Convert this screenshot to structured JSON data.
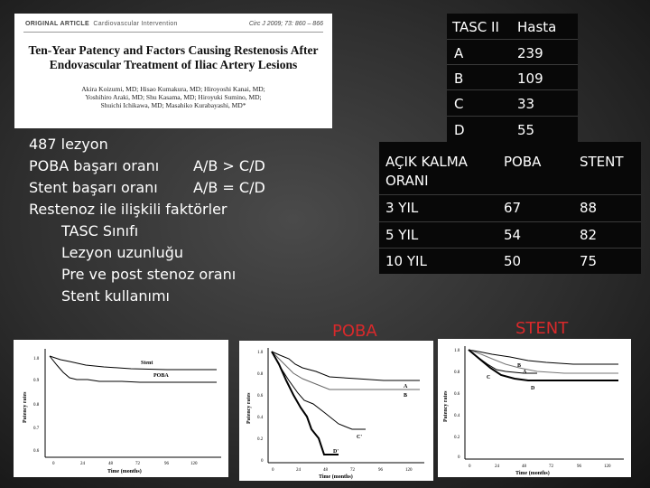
{
  "article": {
    "section": "ORIGINAL ARTICLE",
    "category": "Cardiovascular Intervention",
    "citation": "Circ J 2009; 73: 860 – 866",
    "title_line1": "Ten-Year Patency and Factors Causing Restenosis After",
    "title_line2": "Endovascular Treatment of Iliac Artery Lesions",
    "authors_line1": "Akira Koizumi, MD; Hisao Kumakura, MD; Hiroyoshi Kanai, MD;",
    "authors_line2": "Yoshihiro Araki, MD; Shu Kasama, MD; Hiroyuki Sumino, MD;",
    "authors_line3": "Shuichi Ichikawa, MD; Masahiko Kurabayashi, MD*"
  },
  "bullets": {
    "line1": "487 lezyon",
    "line2_a": "POBA başarı oranı",
    "line2_b": "A/B > C/D",
    "line3_a": "Stent başarı oranı",
    "line3_b": "A/B = C/D",
    "line4": "Restenoz ile ilişkili faktörler",
    "line5": "TASC Sınıfı",
    "line6": "Lezyon uzunluğu",
    "line7": "Pre ve post stenoz oranı",
    "line8": "Stent kullanımı"
  },
  "tasc_table": {
    "headers": [
      "TASC II",
      "Hasta"
    ],
    "rows": [
      [
        "A",
        "239"
      ],
      [
        "B",
        "109"
      ],
      [
        "C",
        "33"
      ],
      [
        "D",
        "55"
      ]
    ]
  },
  "kalma_table": {
    "headers": [
      "AÇIK KALMA ORANI",
      "POBA",
      "STENT"
    ],
    "rows": [
      [
        "3 YIL",
        "67",
        "88"
      ],
      [
        "5 YIL",
        "54",
        "82"
      ],
      [
        "10 YIL",
        "50",
        "75"
      ]
    ]
  },
  "labels": {
    "poba": "POBA",
    "stent": "STENT"
  },
  "plots": {
    "left": {
      "ylabel": "Patency rates",
      "xlabel": "Time (months)",
      "yticks": [
        "1.0",
        "0.9",
        "0.8",
        "0.7",
        "0.6"
      ],
      "xticks": [
        "0",
        "24",
        "48",
        "72",
        "96",
        "120"
      ],
      "series_labels": [
        "Stent",
        "POBA"
      ]
    },
    "middle": {
      "ylabel": "Patency rates",
      "xlabel": "Time (months)",
      "yticks": [
        "1.0",
        "0.8",
        "0.6",
        "0.4",
        "0.2",
        "0"
      ],
      "xticks": [
        "0",
        "24",
        "48",
        "72",
        "96",
        "120"
      ],
      "series_labels": [
        "A",
        "B",
        "C'",
        "D'"
      ]
    },
    "right": {
      "ylabel": "Patency rates",
      "xlabel": "Time (months)",
      "yticks": [
        "1.0",
        "0.8",
        "0.6",
        "0.4",
        "0.2",
        "0"
      ],
      "xticks": [
        "0",
        "24",
        "48",
        "72",
        "96",
        "120"
      ],
      "series_labels": [
        "A",
        "B",
        "C",
        "D"
      ]
    }
  }
}
